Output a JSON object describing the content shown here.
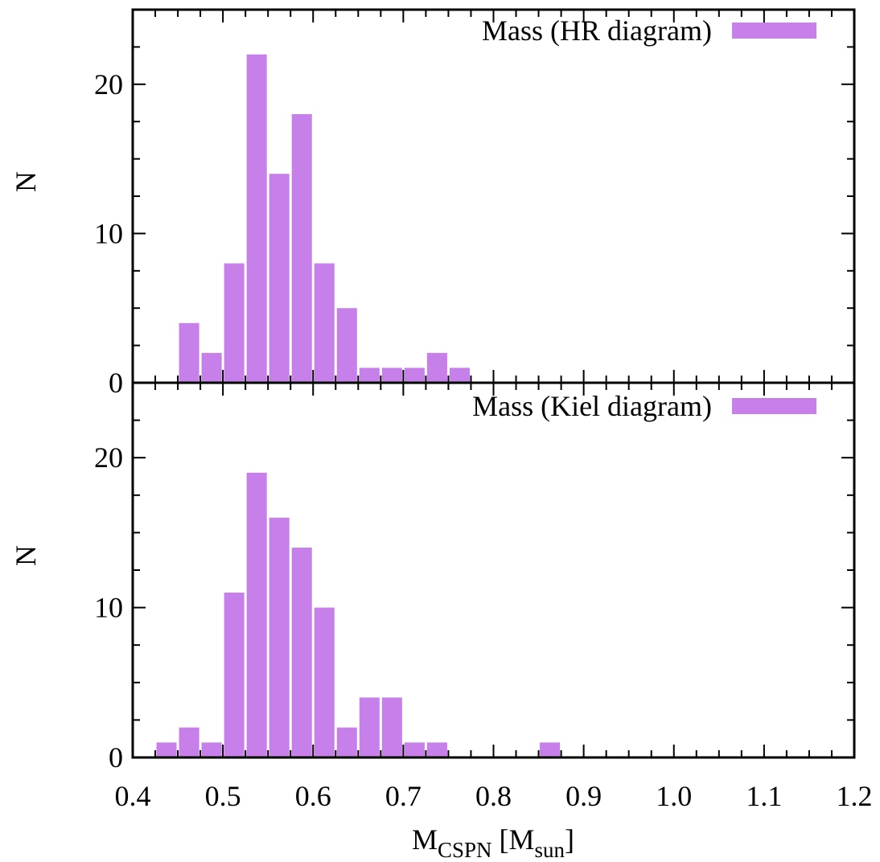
{
  "chart_data": [
    {
      "type": "bar",
      "legend": "Mass (HR diagram)",
      "ylabel": "N",
      "xlim": [
        0.4,
        1.2
      ],
      "ylim": [
        0,
        25
      ],
      "yticks": [
        0,
        10,
        20
      ],
      "bin_width": 0.025,
      "bins": [
        {
          "x": 0.4625,
          "n": 4
        },
        {
          "x": 0.4875,
          "n": 2
        },
        {
          "x": 0.5125,
          "n": 8
        },
        {
          "x": 0.5375,
          "n": 22
        },
        {
          "x": 0.5625,
          "n": 14
        },
        {
          "x": 0.5875,
          "n": 18
        },
        {
          "x": 0.6125,
          "n": 8
        },
        {
          "x": 0.6375,
          "n": 5
        },
        {
          "x": 0.6625,
          "n": 1
        },
        {
          "x": 0.6875,
          "n": 1
        },
        {
          "x": 0.7125,
          "n": 1
        },
        {
          "x": 0.7375,
          "n": 2
        },
        {
          "x": 0.7625,
          "n": 1
        }
      ]
    },
    {
      "type": "bar",
      "legend": "Mass (Kiel diagram)",
      "ylabel": "N",
      "xlabel_main": "M",
      "xlabel_sub": "CSPN",
      "xlabel_unit_main": "M",
      "xlabel_unit_sub": "sun",
      "xlim": [
        0.4,
        1.2
      ],
      "ylim": [
        0,
        25
      ],
      "xticks": [
        "0.4",
        "0.5",
        "0.6",
        "0.7",
        "0.8",
        "0.9",
        "1.0",
        "1.1",
        "1.2"
      ],
      "yticks": [
        0,
        10,
        20
      ],
      "bin_width": 0.025,
      "bins": [
        {
          "x": 0.4375,
          "n": 1
        },
        {
          "x": 0.4625,
          "n": 2
        },
        {
          "x": 0.4875,
          "n": 1
        },
        {
          "x": 0.5125,
          "n": 11
        },
        {
          "x": 0.5375,
          "n": 19
        },
        {
          "x": 0.5625,
          "n": 16
        },
        {
          "x": 0.5875,
          "n": 14
        },
        {
          "x": 0.6125,
          "n": 10
        },
        {
          "x": 0.6375,
          "n": 2
        },
        {
          "x": 0.6625,
          "n": 4
        },
        {
          "x": 0.6875,
          "n": 4
        },
        {
          "x": 0.7125,
          "n": 1
        },
        {
          "x": 0.7375,
          "n": 1
        },
        {
          "x": 0.8625,
          "n": 1
        }
      ]
    }
  ],
  "style": {
    "bar_color": "#c77fe9",
    "axis_color": "#000000"
  }
}
